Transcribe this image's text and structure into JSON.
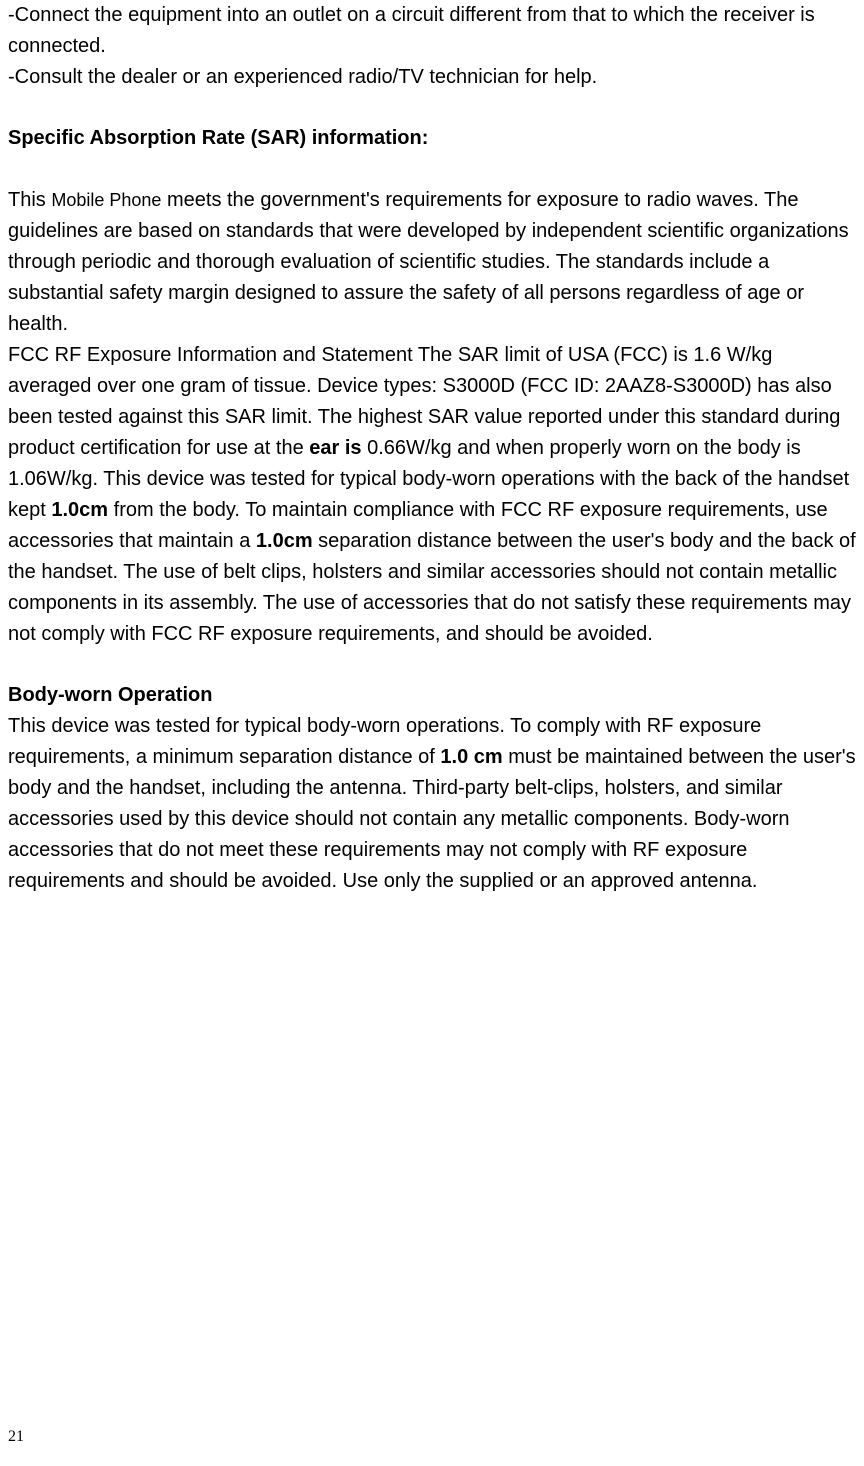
{
  "interference": {
    "line1": "-Connect the equipment into an outlet on a circuit different from that to which the receiver is connected.",
    "line2": "-Consult the dealer or an experienced radio/TV technician for help."
  },
  "sar": {
    "heading": "Specific Absorption Rate (SAR) information:",
    "intro_prefix": "This ",
    "intro_device_type": "Mobile Phone",
    "intro_suffix": " meets the government's requirements for exposure to radio waves. The guidelines are based on standards that were developed by independent scientific organizations through periodic and thorough evaluation of scientific studies. The standards include a substantial safety margin designed to assure the safety of all persons regardless of age or health.",
    "fcc_part1": "FCC RF Exposure Information and Statement The SAR limit of USA (FCC) is 1.6 W/kg averaged over one gram of tissue. Device types: S3000D (FCC ID: 2AAZ8-S3000D) has also been tested against this SAR limit. The highest SAR value reported under this standard during product certification for use at the ",
    "fcc_ear_bold": "ear is",
    "fcc_part2": " 0.66W/kg and when properly worn on the body is 1.06W/kg. This device was tested for typical body-worn operations with the back of the handset kept ",
    "fcc_dist1_bold": "1.0cm",
    "fcc_part3": " from the body. To maintain compliance with FCC RF exposure requirements, use accessories that maintain a ",
    "fcc_dist2_bold": "1.0cm",
    "fcc_part4": " separation distance between the user's body and the back of the handset. The use of belt clips, holsters and similar accessories should not contain metallic components in its assembly. The use of accessories that do not satisfy these requirements may not comply with FCC RF exposure requirements, and should be avoided."
  },
  "bodyworn": {
    "heading": "Body-worn Operation",
    "part1": "This device was tested for typical body-worn operations. To comply with RF exposure requirements, a minimum separation distance of ",
    "dist_bold": "1.0 cm",
    "part2": " must be maintained between the user's body and the handset, including the antenna. Third-party belt-clips, holsters, and similar accessories used by this device should not contain any metallic components. Body-worn accessories that do not meet these requirements may not comply with RF exposure requirements and should be avoided. Use only the supplied or an approved antenna."
  },
  "page_number": "21",
  "colors": {
    "background": "#ffffff",
    "text": "#000000"
  },
  "typography": {
    "body_fontsize": 20,
    "small_fontsize": 18,
    "page_number_fontsize": 16,
    "line_height": 1.55
  }
}
